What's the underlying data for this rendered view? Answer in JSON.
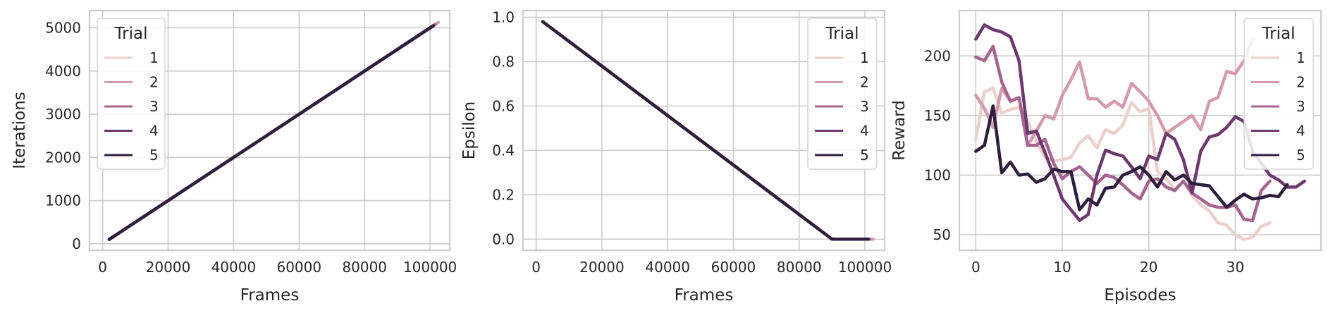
{
  "chart_data": [
    {
      "type": "line",
      "xlabel": "Frames",
      "ylabel": "Iterations",
      "xlim": [
        -4000,
        106000
      ],
      "ylim": [
        -150,
        5400
      ],
      "xticks": [
        0,
        20000,
        40000,
        60000,
        80000,
        100000
      ],
      "yticks": [
        0,
        1000,
        2000,
        3000,
        4000,
        5000
      ],
      "grid": true,
      "legend": {
        "title": "Trial",
        "position": "top-left"
      },
      "series": [
        {
          "name": "1",
          "color": "#ebd0cb",
          "x": [
            2000,
            102500
          ],
          "y": [
            100,
            5125
          ]
        },
        {
          "name": "2",
          "color": "#d59aad",
          "x": [
            2000,
            102500
          ],
          "y": [
            100,
            5125
          ]
        },
        {
          "name": "3",
          "color": "#a7638e",
          "x": [
            2000,
            101500
          ],
          "y": [
            100,
            5075
          ]
        },
        {
          "name": "4",
          "color": "#6d386d",
          "x": [
            2000,
            101000
          ],
          "y": [
            100,
            5050
          ]
        },
        {
          "name": "5",
          "color": "#2d1e3e",
          "x": [
            2000,
            101000
          ],
          "y": [
            100,
            5050
          ]
        }
      ]
    },
    {
      "type": "line",
      "xlabel": "Frames",
      "ylabel": "Epsilon",
      "xlim": [
        -4000,
        106000
      ],
      "ylim": [
        -0.05,
        1.03
      ],
      "xticks": [
        0,
        20000,
        40000,
        60000,
        80000,
        100000
      ],
      "yticks": [
        0.0,
        0.2,
        0.4,
        0.6,
        0.8,
        1.0
      ],
      "ytick_labels": [
        "0.0",
        "0.2",
        "0.4",
        "0.6",
        "0.8",
        "1.0"
      ],
      "grid": true,
      "legend": {
        "title": "Trial",
        "position": "top-right"
      },
      "series": [
        {
          "name": "1",
          "color": "#ebd0cb",
          "x": [
            2000,
            90000,
            102500
          ],
          "y": [
            0.98,
            0.0,
            0.0
          ]
        },
        {
          "name": "2",
          "color": "#d59aad",
          "x": [
            2000,
            90000,
            102500
          ],
          "y": [
            0.98,
            0.0,
            0.0
          ]
        },
        {
          "name": "3",
          "color": "#a7638e",
          "x": [
            2000,
            90000,
            101500
          ],
          "y": [
            0.98,
            0.0,
            0.0
          ]
        },
        {
          "name": "4",
          "color": "#6d386d",
          "x": [
            2000,
            90000,
            101000
          ],
          "y": [
            0.98,
            0.0,
            0.0
          ]
        },
        {
          "name": "5",
          "color": "#2d1e3e",
          "x": [
            2000,
            90000,
            101000
          ],
          "y": [
            0.98,
            0.0,
            0.0
          ]
        }
      ]
    },
    {
      "type": "line",
      "xlabel": "Episodes",
      "ylabel": "Reward",
      "xlim": [
        -1.9,
        39.9
      ],
      "ylim": [
        37,
        238
      ],
      "xticks": [
        0,
        10,
        20,
        30
      ],
      "yticks": [
        50,
        100,
        150,
        200
      ],
      "grid": true,
      "legend": {
        "title": "Trial",
        "position": "top-right"
      },
      "series": [
        {
          "name": "1",
          "color": "#ebd0cb",
          "x": [
            0,
            1,
            2,
            3,
            4,
            5,
            6,
            7,
            8,
            9,
            10,
            11,
            12,
            13,
            14,
            15,
            16,
            17,
            18,
            19,
            20,
            21,
            22,
            23,
            24,
            25,
            26,
            27,
            28,
            29,
            30,
            31,
            32,
            33,
            34
          ],
          "y": [
            130,
            170,
            173,
            152,
            155,
            157,
            145,
            128,
            115,
            112,
            113,
            115,
            127,
            133,
            123,
            138,
            135,
            142,
            161,
            153,
            156,
            103,
            97,
            88,
            95,
            83,
            75,
            70,
            60,
            58,
            50,
            46,
            48,
            57,
            60
          ]
        },
        {
          "name": "2",
          "color": "#d59aad",
          "x": [
            0,
            1,
            2,
            3,
            4,
            5,
            6,
            7,
            8,
            9,
            10,
            11,
            12,
            13,
            14,
            15,
            16,
            17,
            18,
            19,
            20,
            21,
            22,
            23,
            24,
            25,
            26,
            27,
            28,
            29,
            30,
            31,
            32
          ],
          "y": [
            167,
            156,
            140,
            173,
            162,
            165,
            125,
            137,
            150,
            147,
            167,
            180,
            195,
            164,
            164,
            157,
            162,
            157,
            177,
            170,
            162,
            150,
            135,
            140,
            145,
            150,
            138,
            162,
            165,
            187,
            185,
            196,
            214
          ]
        },
        {
          "name": "3",
          "color": "#a7638e",
          "x": [
            0,
            1,
            2,
            3,
            4,
            5,
            6,
            7,
            8,
            9,
            10,
            11,
            12,
            13,
            14,
            15,
            16,
            17,
            18,
            19,
            20,
            21,
            22,
            23,
            24,
            25,
            26,
            27,
            28,
            29,
            30,
            31,
            32,
            33,
            34
          ],
          "y": [
            199,
            196,
            208,
            178,
            162,
            165,
            125,
            125,
            130,
            110,
            97,
            103,
            107,
            100,
            93,
            100,
            98,
            92,
            85,
            80,
            95,
            97,
            90,
            87,
            95,
            85,
            80,
            75,
            73,
            73,
            75,
            63,
            62,
            87,
            95
          ]
        },
        {
          "name": "4",
          "color": "#6d386d",
          "x": [
            0,
            1,
            2,
            3,
            4,
            5,
            6,
            7,
            8,
            9,
            10,
            11,
            12,
            13,
            14,
            15,
            16,
            17,
            18,
            19,
            20,
            21,
            22,
            23,
            24,
            25,
            26,
            27,
            28,
            29,
            30,
            31,
            32,
            33,
            34,
            35,
            36,
            37,
            38
          ],
          "y": [
            214,
            226,
            222,
            220,
            216,
            196,
            135,
            137,
            119,
            100,
            80,
            71,
            62,
            67,
            100,
            121,
            118,
            116,
            107,
            97,
            116,
            113,
            135,
            130,
            113,
            85,
            120,
            132,
            134,
            140,
            149,
            145,
            120,
            110,
            100,
            96,
            90,
            90,
            95
          ]
        },
        {
          "name": "5",
          "color": "#2d1e3e",
          "x": [
            0,
            1,
            2,
            3,
            4,
            5,
            6,
            7,
            8,
            9,
            10,
            11,
            12,
            13,
            14,
            15,
            16,
            17,
            18,
            19,
            20,
            21,
            22,
            23,
            24,
            25,
            26,
            27,
            28,
            29,
            30,
            31,
            32,
            33,
            34,
            35,
            36
          ],
          "y": [
            120,
            125,
            158,
            102,
            111,
            100,
            101,
            94,
            97,
            105,
            103,
            103,
            71,
            80,
            75,
            89,
            90,
            100,
            103,
            107,
            100,
            90,
            103,
            96,
            100,
            93,
            92,
            91,
            82,
            73,
            79,
            84,
            80,
            81,
            83,
            82,
            92
          ]
        }
      ]
    }
  ]
}
